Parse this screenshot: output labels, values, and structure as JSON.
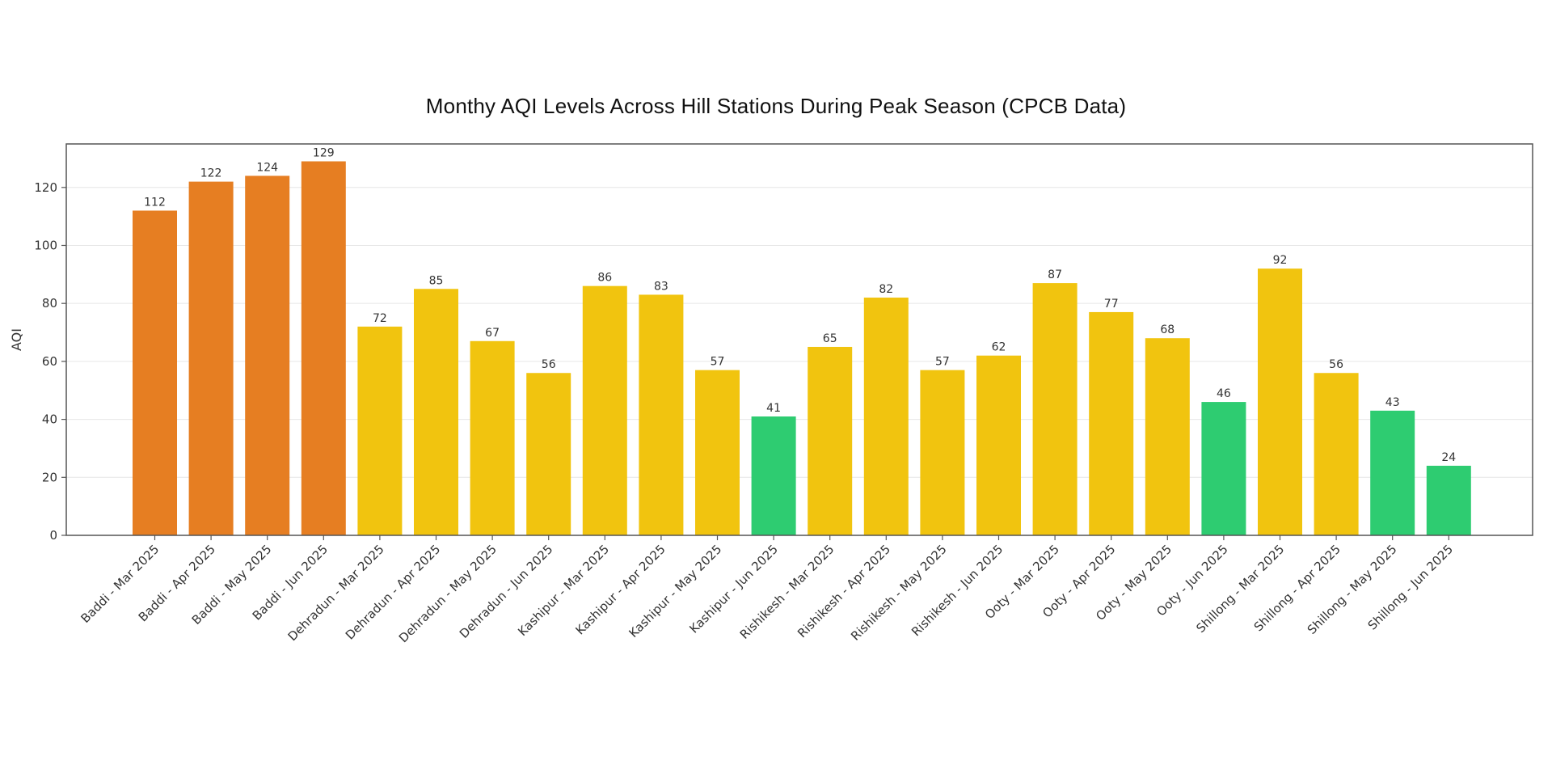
{
  "chart_data": {
    "type": "bar",
    "title": "Monthy AQI Levels Across Hill Stations During Peak Season (CPCB Data)",
    "xlabel": "",
    "ylabel": "AQI",
    "ylim": [
      0,
      135
    ],
    "yticks": [
      0,
      20,
      40,
      60,
      80,
      100,
      120
    ],
    "grid": true,
    "categories": [
      "Baddi - Mar 2025",
      "Baddi - Apr 2025",
      "Baddi - May 2025",
      "Baddi - Jun 2025",
      "Dehradun - Mar 2025",
      "Dehradun - Apr 2025",
      "Dehradun - May 2025",
      "Dehradun - Jun 2025",
      "Kashipur - Mar 2025",
      "Kashipur - Apr 2025",
      "Kashipur - May 2025",
      "Kashipur - Jun 2025",
      "Rishikesh - Mar 2025",
      "Rishikesh - Apr 2025",
      "Rishikesh - May 2025",
      "Rishikesh - Jun 2025",
      "Ooty - Mar 2025",
      "Ooty - Apr 2025",
      "Ooty - May 2025",
      "Ooty - Jun 2025",
      "Shillong - Mar 2025",
      "Shillong - Apr 2025",
      "Shillong - May 2025",
      "Shillong - Jun 2025"
    ],
    "values": [
      112,
      122,
      124,
      129,
      72,
      85,
      67,
      56,
      86,
      83,
      57,
      41,
      65,
      82,
      57,
      62,
      87,
      77,
      68,
      46,
      92,
      56,
      43,
      24
    ],
    "colors": {
      "orange": "#e67e22",
      "yellow": "#f1c40f",
      "green": "#2ecc71",
      "axis": "#555555",
      "grid": "#e6e6e6"
    }
  }
}
